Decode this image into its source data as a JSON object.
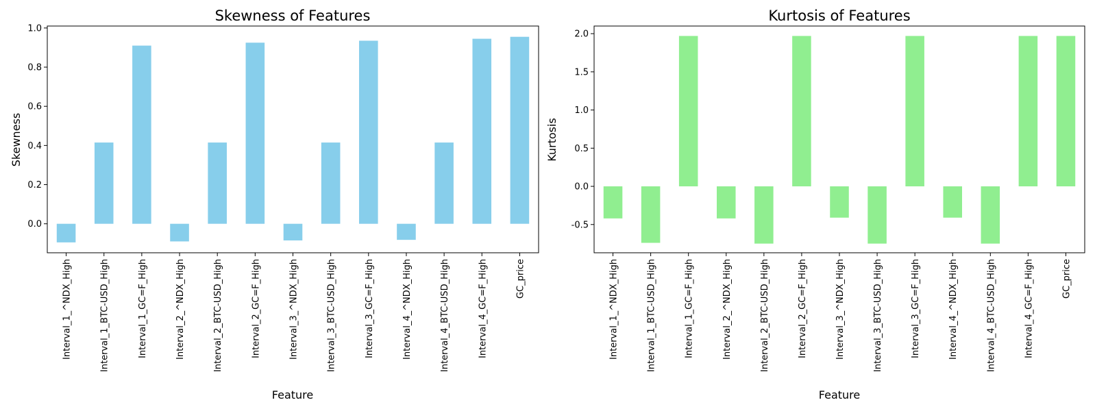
{
  "chart_data": [
    {
      "type": "bar",
      "title": "Skewness of Features",
      "xlabel": "Feature",
      "ylabel": "Skewness",
      "categories": [
        "Interval_1_^NDX_High",
        "Interval_1_BTC-USD_High",
        "Interval_1_GC=F_High",
        "Interval_2_^NDX_High",
        "Interval_2_BTC-USD_High",
        "Interval_2_GC=F_High",
        "Interval_3_^NDX_High",
        "Interval_3_BTC-USD_High",
        "Interval_3_GC=F_High",
        "Interval_4_^NDX_High",
        "Interval_4_BTC-USD_High",
        "Interval_4_GC=F_High",
        "GC_price"
      ],
      "values": [
        -0.095,
        0.415,
        0.91,
        -0.09,
        0.415,
        0.925,
        -0.085,
        0.415,
        0.935,
        -0.082,
        0.415,
        0.945,
        0.955
      ],
      "ylim": [
        -0.148,
        1.01
      ],
      "yticks": [
        0.0,
        0.2,
        0.4,
        0.6,
        0.8,
        1.0
      ],
      "ytick_labels": [
        "0.0",
        "0.2",
        "0.4",
        "0.6",
        "0.8",
        "1.0"
      ],
      "bar_color": "#87ceeb",
      "grid": false
    },
    {
      "type": "bar",
      "title": "Kurtosis of Features",
      "xlabel": "Feature",
      "ylabel": "Kurtosis",
      "categories": [
        "Interval_1_^NDX_High",
        "Interval_1_BTC-USD_High",
        "Interval_1_GC=F_High",
        "Interval_2_^NDX_High",
        "Interval_2_BTC-USD_High",
        "Interval_2_GC=F_High",
        "Interval_3_^NDX_High",
        "Interval_3_BTC-USD_High",
        "Interval_3_GC=F_High",
        "Interval_4_^NDX_High",
        "Interval_4_BTC-USD_High",
        "Interval_4_GC=F_High",
        "GC_price"
      ],
      "values": [
        -0.42,
        -0.74,
        1.97,
        -0.42,
        -0.75,
        1.97,
        -0.41,
        -0.75,
        1.97,
        -0.41,
        -0.75,
        1.97,
        1.97
      ],
      "ylim": [
        -0.87,
        2.1
      ],
      "yticks": [
        -0.5,
        0.0,
        0.5,
        1.0,
        1.5,
        2.0
      ],
      "ytick_labels": [
        "-0.5",
        "0.0",
        "0.5",
        "1.0",
        "1.5",
        "2.0"
      ],
      "bar_color": "#90ee90",
      "grid": false
    }
  ]
}
